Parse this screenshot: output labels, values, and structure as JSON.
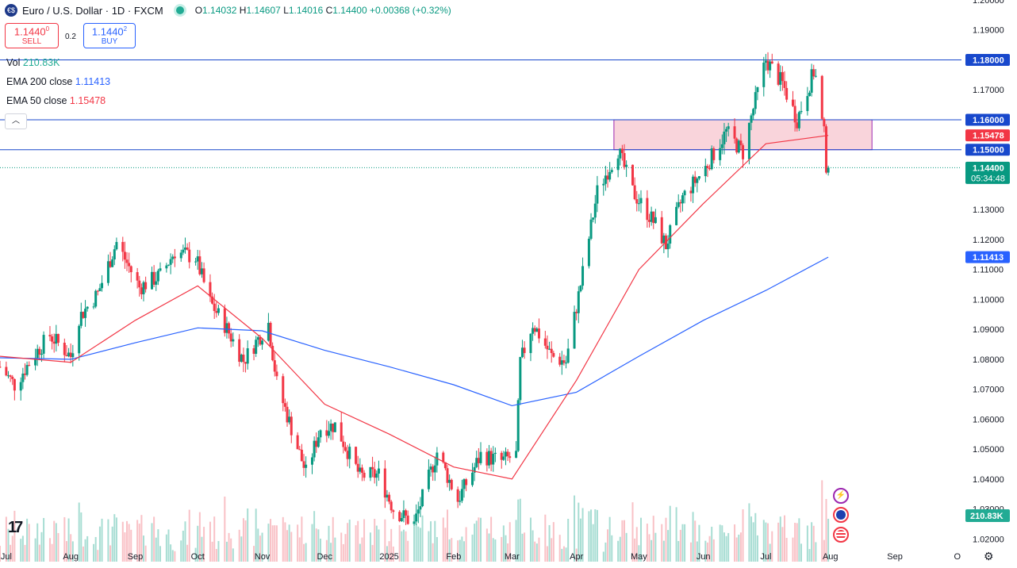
{
  "header": {
    "title": "Euro / U.S. Dollar · 1D · FXCM",
    "o_label": "O",
    "o": "1.14032",
    "h_label": "H",
    "h": "1.14607",
    "l_label": "L",
    "l": "1.14016",
    "c_label": "C",
    "c": "1.14400",
    "change": "+0.00368 (+0.32%)"
  },
  "trade": {
    "sell_price": "1.1440",
    "sell_sup": "0",
    "sell_label": "SELL",
    "spread": "0.2",
    "buy_price": "1.1440",
    "buy_sup": "2",
    "buy_label": "BUY"
  },
  "indicators": {
    "vol_label": "Vol",
    "vol_value": "210.83K",
    "ema200_label": "EMA 200 close",
    "ema200_value": "1.11413",
    "ema50_label": "EMA 50 close",
    "ema50_value": "1.15478"
  },
  "colors": {
    "up": "#089981",
    "down": "#f23645",
    "ema200": "#2962ff",
    "ema50": "#f23645",
    "zone_fill": "#f7c6cf",
    "zone_stroke": "#9c27b0",
    "hline": "#1848cc"
  },
  "icons": [
    "tradingview-logo-icon",
    "lightning-event-icon",
    "eu-flag-event-icon",
    "us-flag-event-icon",
    "settings-gear-icon",
    "collapse-chevron-icon"
  ],
  "chart_data": {
    "type": "candlestick",
    "title": "Euro / U.S. Dollar · 1D · FXCM",
    "ylim": [
      1.0124,
      1.2
    ],
    "y_ticks": [
      "1.20000",
      "1.19000",
      "1.18000",
      "1.17000",
      "1.16000",
      "1.15000",
      "1.14000",
      "1.13000",
      "1.12000",
      "1.11000",
      "1.10000",
      "1.09000",
      "1.08000",
      "1.07000",
      "1.06000",
      "1.05000",
      "1.04000",
      "1.03000",
      "1.02000"
    ],
    "x_ticks": [
      "Jul",
      "Aug",
      "Sep",
      "Oct",
      "Nov",
      "Dec",
      "2025",
      "Feb",
      "Mar",
      "Apr",
      "May",
      "Jun",
      "Jul",
      "Aug",
      "Sep",
      "O"
    ],
    "x_range": [
      "2024-06-28",
      "2025-10-03"
    ],
    "horizontal_lines": [
      1.18,
      1.16,
      1.15
    ],
    "zone": {
      "x_start": "2025-04-19",
      "x_end": "2025-08-21",
      "y_low": 1.15,
      "y_high": 1.16
    },
    "last_price": 1.144,
    "countdown": "05:34:48",
    "price_labels": [
      {
        "value": "1.18000",
        "kind": "line"
      },
      {
        "value": "1.16000",
        "kind": "line"
      },
      {
        "value": "1.15478",
        "kind": "ema50"
      },
      {
        "value": "1.15000",
        "kind": "line"
      },
      {
        "value": "1.14400",
        "kind": "last"
      },
      {
        "value": "1.11413",
        "kind": "ema200"
      }
    ],
    "volume_label": "210.83K",
    "close_path": [
      [
        "2024-06-28",
        1.0775
      ],
      [
        "2024-07-05",
        1.0715
      ],
      [
        "2024-07-15",
        1.082
      ],
      [
        "2024-07-22",
        1.088
      ],
      [
        "2024-08-01",
        1.081
      ],
      [
        "2024-08-05",
        1.094
      ],
      [
        "2024-08-14",
        1.102
      ],
      [
        "2024-08-23",
        1.119
      ],
      [
        "2024-09-03",
        1.104
      ],
      [
        "2024-09-13",
        1.108
      ],
      [
        "2024-09-20",
        1.116
      ],
      [
        "2024-09-30",
        1.114
      ],
      [
        "2024-10-07",
        1.099
      ],
      [
        "2024-10-14",
        1.0915
      ],
      [
        "2024-10-23",
        1.0795
      ],
      [
        "2024-11-04",
        1.092
      ],
      [
        "2024-11-08",
        1.072
      ],
      [
        "2024-11-22",
        1.042
      ],
      [
        "2024-11-29",
        1.057
      ],
      [
        "2024-12-06",
        1.058
      ],
      [
        "2024-12-18",
        1.041
      ],
      [
        "2024-12-27",
        1.0415
      ],
      [
        "2025-01-03",
        1.03
      ],
      [
        "2025-01-13",
        1.025
      ],
      [
        "2025-01-24",
        1.049
      ],
      [
        "2025-02-03",
        1.033
      ],
      [
        "2025-02-14",
        1.048
      ],
      [
        "2025-02-24",
        1.046
      ],
      [
        "2025-03-03",
        1.048
      ],
      [
        "2025-03-05",
        1.079
      ],
      [
        "2025-03-11",
        1.092
      ],
      [
        "2025-03-20",
        1.081
      ],
      [
        "2025-03-27",
        1.079
      ],
      [
        "2025-04-03",
        1.105
      ],
      [
        "2025-04-11",
        1.136
      ],
      [
        "2025-04-21",
        1.15
      ],
      [
        "2025-04-28",
        1.136
      ],
      [
        "2025-05-09",
        1.125
      ],
      [
        "2025-05-14",
        1.118
      ],
      [
        "2025-05-22",
        1.134
      ],
      [
        "2025-06-02",
        1.144
      ],
      [
        "2025-06-12",
        1.156
      ],
      [
        "2025-06-20",
        1.149
      ],
      [
        "2025-06-24",
        1.161
      ],
      [
        "2025-07-01",
        1.18
      ],
      [
        "2025-07-09",
        1.172
      ],
      [
        "2025-07-16",
        1.16
      ],
      [
        "2025-07-24",
        1.176
      ],
      [
        "2025-07-25",
        1.174
      ],
      [
        "2025-07-28",
        1.159
      ],
      [
        "2025-07-29",
        1.155
      ],
      [
        "2025-07-30",
        1.145
      ],
      [
        "2025-07-31",
        1.144
      ]
    ],
    "series": [
      {
        "name": "EMA 200 close",
        "points": [
          [
            "2024-06-28",
            1.0805
          ],
          [
            "2024-08-01",
            1.08
          ],
          [
            "2024-09-01",
            1.0855
          ],
          [
            "2024-10-01",
            1.0905
          ],
          [
            "2024-11-01",
            1.0895
          ],
          [
            "2024-12-01",
            1.083
          ],
          [
            "2025-01-01",
            1.0775
          ],
          [
            "2025-02-01",
            1.0715
          ],
          [
            "2025-03-01",
            1.0645
          ],
          [
            "2025-04-01",
            1.069
          ],
          [
            "2025-05-01",
            1.081
          ],
          [
            "2025-06-01",
            1.093
          ],
          [
            "2025-07-01",
            1.103
          ],
          [
            "2025-07-31",
            1.11413
          ]
        ]
      },
      {
        "name": "EMA 50 close",
        "points": [
          [
            "2024-06-28",
            1.081
          ],
          [
            "2024-08-01",
            1.079
          ],
          [
            "2024-09-01",
            1.093
          ],
          [
            "2024-10-01",
            1.1045
          ],
          [
            "2024-11-01",
            1.087
          ],
          [
            "2024-12-01",
            1.065
          ],
          [
            "2025-01-01",
            1.055
          ],
          [
            "2025-02-01",
            1.044
          ],
          [
            "2025-03-01",
            1.04
          ],
          [
            "2025-04-01",
            1.073
          ],
          [
            "2025-05-01",
            1.11
          ],
          [
            "2025-06-01",
            1.132
          ],
          [
            "2025-07-01",
            1.152
          ],
          [
            "2025-07-31",
            1.15478
          ]
        ]
      }
    ]
  }
}
